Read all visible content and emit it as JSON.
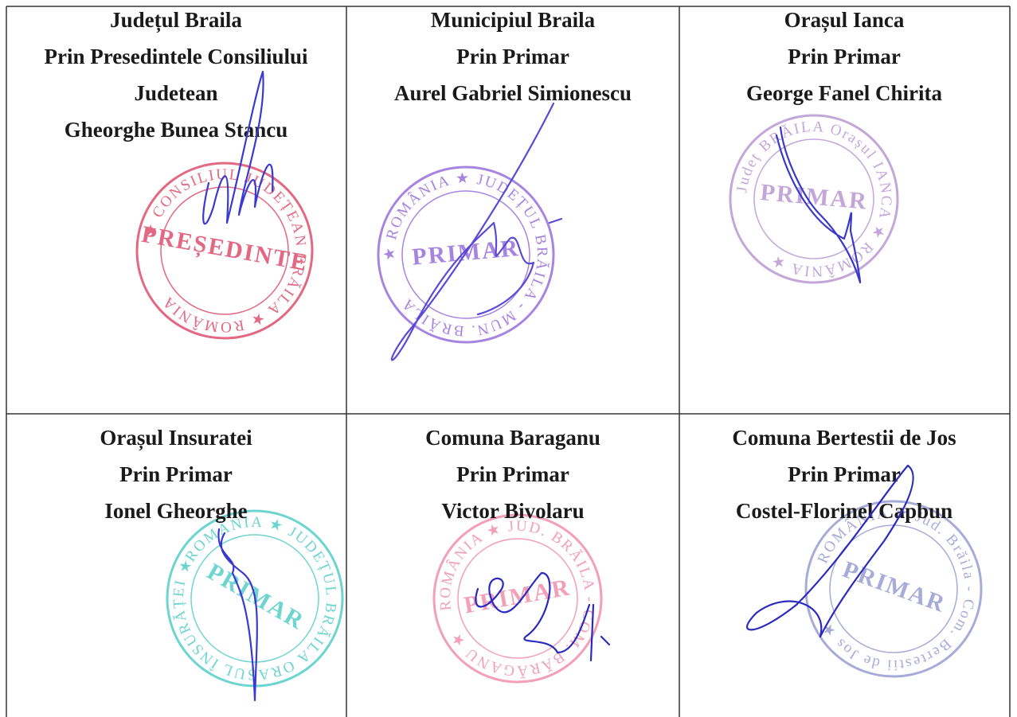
{
  "table": {
    "cells": [
      {
        "lines": [
          "Județul Braila",
          "Prin Presedintele Consiliului",
          "Judetean",
          "Gheorghe Bunea Stancu"
        ],
        "stamp": {
          "ring": "★ CONSILIUL JUDEȚEAN BRĂILA ★ ROMÂNIA",
          "center": "PREȘEDINTE",
          "color": "#d9365a"
        }
      },
      {
        "lines": [
          "Municipiul Braila",
          "Prin  Primar",
          "Aurel Gabriel Simionescu"
        ],
        "stamp": {
          "ring": "★ ROMÂNIA ★ JUDEȚUL BRĂILA - MUN. BRĂILA",
          "center": "PRIMAR",
          "color": "#8a5cd6"
        }
      },
      {
        "lines": [
          "Orașul Ianca",
          "Prin Primar",
          "George Fanel Chirita"
        ],
        "stamp": {
          "ring": "Județ BRĂILA Orașul IANCA ★ ROMÂNIA ★",
          "center": "PRIMAR",
          "color": "#b08acc"
        }
      },
      {
        "lines": [
          "Orașul Insuratei",
          "Prin Primar",
          "Ionel Gheorghe"
        ],
        "stamp": {
          "ring": "ROMÂNIA ★ JUDEȚUL BRĂILA ORAȘUL ÎNSURĂȚEI ★",
          "center": "PRIMAR",
          "color": "#3cc8c0"
        }
      },
      {
        "lines": [
          "Comuna Baraganu",
          "Prin Primar",
          "Victor Bivolaru"
        ],
        "stamp": {
          "ring": "ROMÂNIA ★ JUD. BRĂILA - COM. BĂRĂGANU ★",
          "center": "PRIMAR",
          "color": "#ee7fa0"
        }
      },
      {
        "lines": [
          "Comuna Bertestii de Jos",
          "Prin Primar",
          "Costel-Florinel Capbun"
        ],
        "stamp": {
          "ring": "ROMÂNIA ★ Jud. Brăila - Com. Bertestii de Jos ★",
          "center": "PRIMAR",
          "color": "#8a8fcc"
        }
      }
    ]
  }
}
